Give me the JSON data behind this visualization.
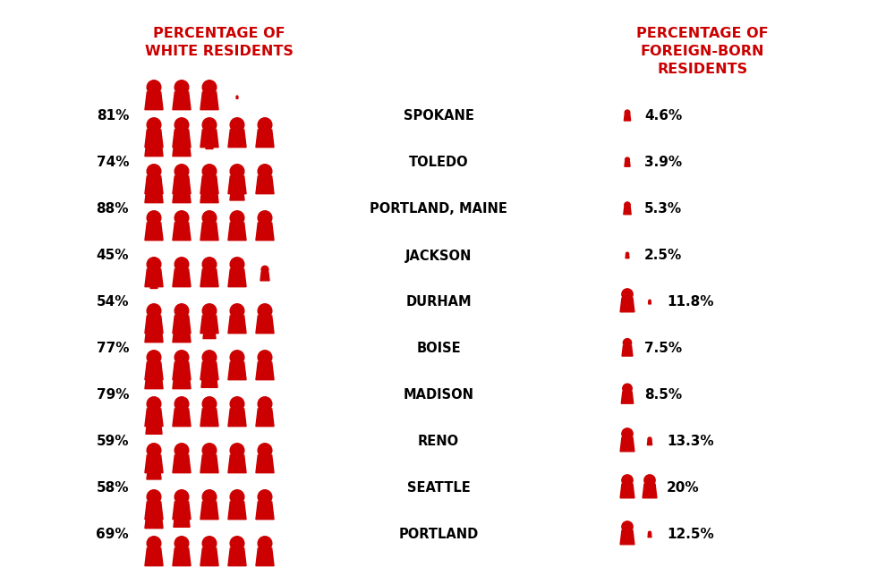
{
  "cities": [
    "SPOKANE",
    "TOLEDO",
    "PORTLAND, MAINE",
    "JACKSON",
    "DURHAM",
    "BOISE",
    "MADISON",
    "RENO",
    "SEATTLE",
    "PORTLAND"
  ],
  "white_pct": [
    81,
    74,
    88,
    45,
    54,
    77,
    79,
    59,
    58,
    69
  ],
  "foreign_pct": [
    4.6,
    3.9,
    5.3,
    2.5,
    11.8,
    7.5,
    8.5,
    13.3,
    20.0,
    12.5
  ],
  "white_pct_labels": [
    "81%",
    "74%",
    "88%",
    "45%",
    "54%",
    "77%",
    "79%",
    "59%",
    "58%",
    "69%"
  ],
  "foreign_pct_labels": [
    "4.6%",
    "3.9%",
    "5.3%",
    "2.5%",
    "11.8%",
    "7.5%",
    "8.5%",
    "13.3%",
    "20%",
    "12.5%"
  ],
  "icon_color": "#CC0000",
  "title_left": "PERCENTAGE OF\nWHITE RESIDENTS",
  "title_right": "PERCENTAGE OF\nFOREIGN-BORN\nRESIDENTS",
  "background_color": "#FFFFFF",
  "text_color_title": "#CC0000",
  "text_color_label": "#000000",
  "text_color_city": "#000000",
  "fig_width": 9.8,
  "fig_height": 6.53,
  "dpi": 100
}
